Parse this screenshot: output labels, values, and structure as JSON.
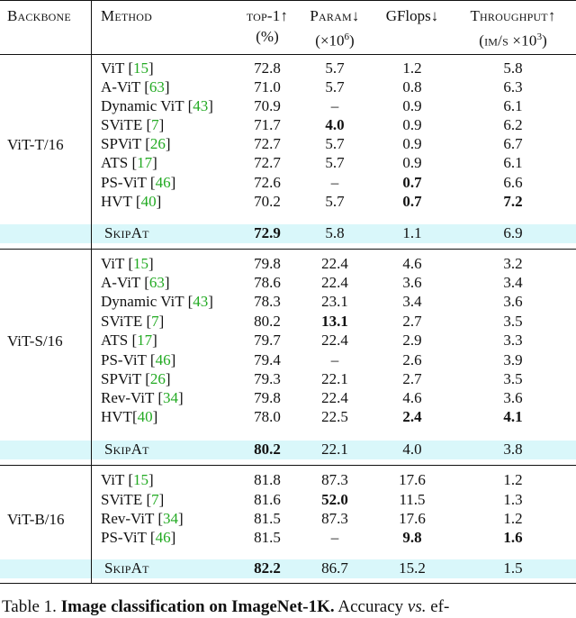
{
  "header": {
    "backbone": "Backbone",
    "method": "Method",
    "top1": "top-1↑",
    "top1_unit": "(%)",
    "param": "Param↓",
    "param_unit_base": "(×10",
    "param_unit_exp": "6",
    "param_unit_close": ")",
    "gflops": "GFlops↓",
    "throughput": "Throughput↑",
    "throughput_unit_base": "(im/s ×10",
    "throughput_unit_exp": "3",
    "throughput_unit_close": ")"
  },
  "groups": [
    {
      "backbone": "ViT-T/16",
      "rows": [
        {
          "method": "ViT",
          "cite": "15",
          "top1": "72.8",
          "param": "5.7",
          "gflops": "1.2",
          "throughput": "5.8",
          "bold": []
        },
        {
          "method": "A-ViT",
          "cite": "63",
          "top1": "71.0",
          "param": "5.7",
          "gflops": "0.8",
          "throughput": "6.3",
          "bold": []
        },
        {
          "method": "Dynamic ViT",
          "cite": "43",
          "top1": "70.9",
          "param": "–",
          "gflops": "0.9",
          "throughput": "6.1",
          "bold": []
        },
        {
          "method": "SViTE",
          "cite": "7",
          "top1": "71.7",
          "param": "4.0",
          "gflops": "0.9",
          "throughput": "6.2",
          "bold": [
            "param"
          ]
        },
        {
          "method": "SPViT",
          "cite": "26",
          "top1": "72.7",
          "param": "5.7",
          "gflops": "0.9",
          "throughput": "6.7",
          "bold": []
        },
        {
          "method": "ATS",
          "cite": "17",
          "top1": "72.7",
          "param": "5.7",
          "gflops": "0.9",
          "throughput": "6.1",
          "bold": []
        },
        {
          "method": "PS-ViT",
          "cite": "46",
          "top1": "72.6",
          "param": "–",
          "gflops": "0.7",
          "throughput": "6.6",
          "bold": [
            "gflops"
          ]
        },
        {
          "method": "HVT",
          "cite": "40",
          "top1": "70.2",
          "param": "5.7",
          "gflops": "0.7",
          "throughput": "7.2",
          "bold": [
            "gflops",
            "throughput"
          ]
        }
      ],
      "skipat": {
        "method": "SkipAt",
        "top1": "72.9",
        "param": "5.8",
        "gflops": "1.1",
        "throughput": "6.9",
        "bold": [
          "top1"
        ]
      }
    },
    {
      "backbone": "ViT-S/16",
      "rows": [
        {
          "method": "ViT",
          "cite": "15",
          "top1": "79.8",
          "param": "22.4",
          "gflops": "4.6",
          "throughput": "3.2",
          "bold": []
        },
        {
          "method": "A-ViT",
          "cite": "63",
          "top1": "78.6",
          "param": "22.4",
          "gflops": "3.6",
          "throughput": "3.4",
          "bold": []
        },
        {
          "method": "Dynamic ViT",
          "cite": "43",
          "top1": "78.3",
          "param": "23.1",
          "gflops": "3.4",
          "throughput": "3.6",
          "bold": []
        },
        {
          "method": "SViTE",
          "cite": "7",
          "top1": "80.2",
          "param": "13.1",
          "gflops": "2.7",
          "throughput": "3.5",
          "bold": [
            "param"
          ]
        },
        {
          "method": "ATS",
          "cite": "17",
          "top1": "79.7",
          "param": "22.4",
          "gflops": "2.9",
          "throughput": "3.3",
          "bold": []
        },
        {
          "method": "PS-ViT",
          "cite": "46",
          "top1": "79.4",
          "param": "–",
          "gflops": "2.6",
          "throughput": "3.9",
          "bold": []
        },
        {
          "method": "SPViT",
          "cite": "26",
          "top1": "79.3",
          "param": "22.1",
          "gflops": "2.7",
          "throughput": "3.5",
          "bold": []
        },
        {
          "method": "Rev-ViT",
          "cite": "34",
          "top1": "79.8",
          "param": "22.4",
          "gflops": "4.6",
          "throughput": "3.6",
          "bold": []
        },
        {
          "method": "HVT",
          "cite": "40",
          "nospace": true,
          "top1": "78.0",
          "param": "22.5",
          "gflops": "2.4",
          "throughput": "4.1",
          "bold": [
            "gflops",
            "throughput"
          ]
        }
      ],
      "skipat": {
        "method": "SkipAt",
        "top1": "80.2",
        "param": "22.1",
        "gflops": "4.0",
        "throughput": "3.8",
        "bold": [
          "top1"
        ]
      }
    },
    {
      "backbone": "ViT-B/16",
      "rows": [
        {
          "method": "ViT",
          "cite": "15",
          "top1": "81.8",
          "param": "87.3",
          "gflops": "17.6",
          "throughput": "1.2",
          "bold": []
        },
        {
          "method": "SViTE",
          "cite": "7",
          "top1": "81.6",
          "param": "52.0",
          "gflops": "11.5",
          "throughput": "1.3",
          "bold": [
            "param"
          ]
        },
        {
          "method": "Rev-ViT",
          "cite": "34",
          "top1": "81.5",
          "param": "87.3",
          "gflops": "17.6",
          "throughput": "1.2",
          "bold": []
        },
        {
          "method": "PS-ViT",
          "cite": "46",
          "top1": "81.5",
          "param": "–",
          "gflops": "9.8",
          "throughput": "1.6",
          "bold": [
            "gflops",
            "throughput"
          ]
        }
      ],
      "skipat": {
        "method": "SkipAt",
        "top1": "82.2",
        "param": "86.7",
        "gflops": "15.2",
        "throughput": "1.5",
        "bold": [
          "top1"
        ]
      }
    }
  ],
  "caption": {
    "label": "Table 1.",
    "title": "Image classification on ImageNet-1K.",
    "text": "Accuracy",
    "vs": "vs.",
    "tail": "ef-"
  }
}
